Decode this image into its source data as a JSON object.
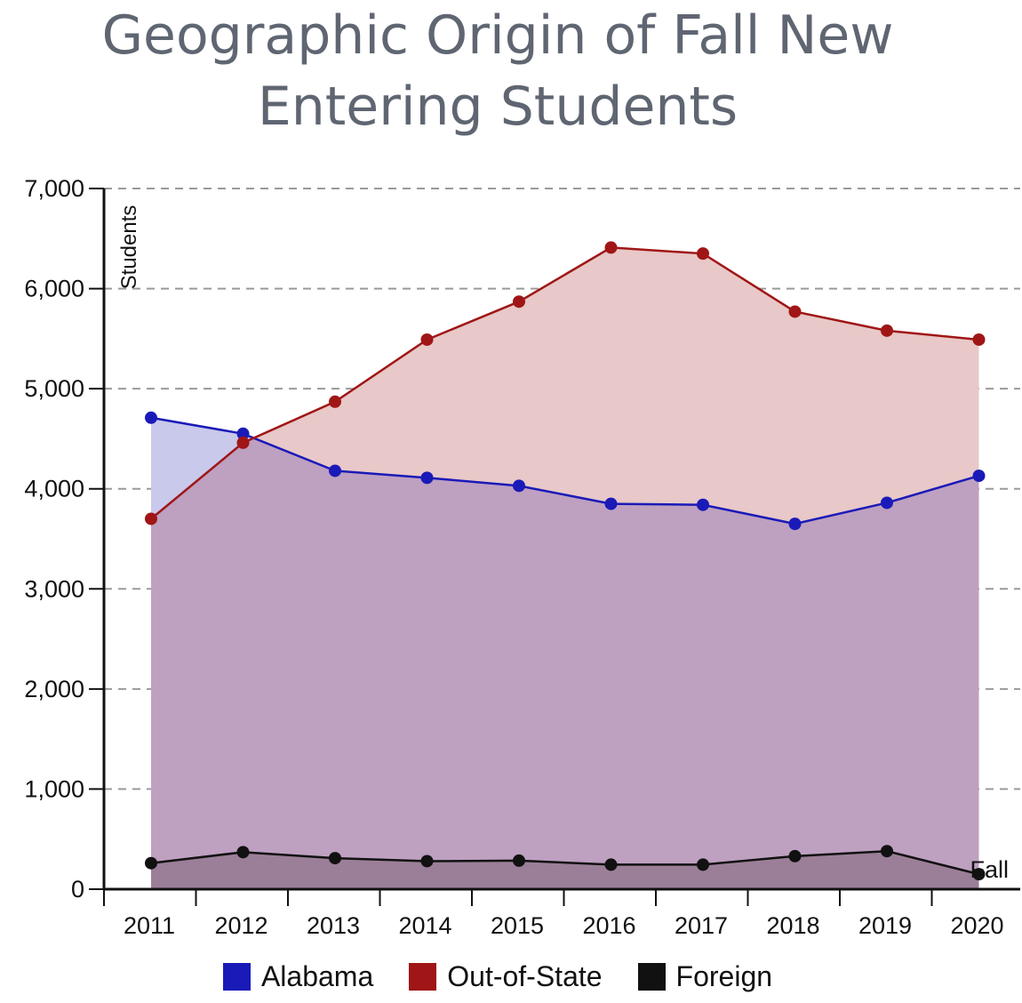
{
  "title_line1": "Geographic Origin of Fall New",
  "title_line2": "Entering Students",
  "colors": {
    "alabama": "#1a1ab8",
    "out_of_state": "#a01616",
    "foreign": "#111111",
    "alabama_fill": "#c9c9ec",
    "out_of_state_fill": "#e8c8c8",
    "overlap_fill": "#bea0c1",
    "foreign_fill": "#9b7f98",
    "grid": "#9a9a9a",
    "title": "#5f6672"
  },
  "chart_data": {
    "type": "area",
    "title": "Geographic Origin of Fall New Entering Students",
    "xlabel": "",
    "ylabel": "Students",
    "x_tick_labels": [
      "2011",
      "2012",
      "2013",
      "2014",
      "2015",
      "2016",
      "2017",
      "2018",
      "2019",
      "2020"
    ],
    "y_tick_labels": [
      "0",
      "1,000",
      "2,000",
      "3,000",
      "4,000",
      "5,000",
      "6,000",
      "7,000"
    ],
    "y_ticks": [
      0,
      1000,
      2000,
      3000,
      4000,
      5000,
      6000,
      7000
    ],
    "ylim": [
      0,
      7000
    ],
    "grid": true,
    "legend_position": "bottom",
    "annotation": "Fall",
    "series": [
      {
        "name": "Alabama",
        "values": [
          4710,
          4550,
          4180,
          4110,
          4030,
          3850,
          3840,
          3650,
          3860,
          4130
        ]
      },
      {
        "name": "Out-of-State",
        "values": [
          3700,
          4460,
          4870,
          5490,
          5870,
          6410,
          6350,
          5770,
          5580,
          5490
        ]
      },
      {
        "name": "Foreign",
        "values": [
          260,
          370,
          310,
          280,
          285,
          245,
          245,
          330,
          380,
          150
        ]
      }
    ]
  }
}
